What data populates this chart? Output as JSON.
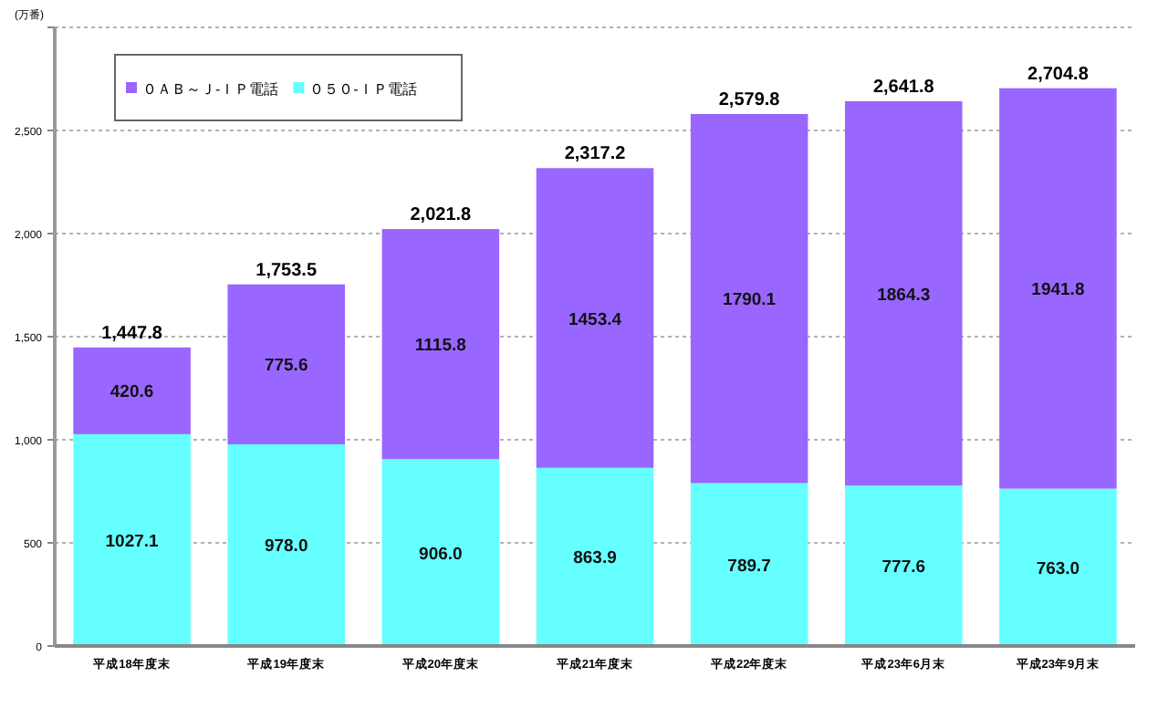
{
  "chart_data": {
    "type": "bar",
    "ylabel": "(万番)",
    "categories": [
      "平成18年度末",
      "平成19年度末",
      "平成20年度末",
      "平成21年度末",
      "平成22年度末",
      "平成23年6月末",
      "平成23年9月末"
    ],
    "series": [
      {
        "name": "０５０-ＩＰ電話",
        "color": "#66ffff",
        "values": [
          1027.1,
          978,
          906,
          863.9,
          789.7,
          777.6,
          763
        ],
        "value_labels": [
          "1027.1",
          "978.0",
          "906.0",
          "863.9",
          "789.7",
          "777.6",
          "763.0"
        ]
      },
      {
        "name": "０ＡＢ～Ｊ-ＩＰ電話",
        "color": "#9966ff",
        "values": [
          420.6,
          775.6,
          1115.8,
          1453.4,
          1790.1,
          1864.3,
          1941.8
        ],
        "value_labels": [
          "420.6",
          "775.6",
          "1115.8",
          "1453.4",
          "1790.1",
          "1864.3",
          "1941.8"
        ]
      }
    ],
    "stacked": true,
    "totals": [
      "1,447.8",
      "1,753.5",
      "2,021.8",
      "2,317.2",
      "2,579.8",
      "2,641.8",
      "2,704.8"
    ],
    "ylim": [
      0,
      3000
    ],
    "yticks": [
      0,
      500,
      {
        "value": 1000,
        "label": "1,000"
      },
      {
        "value": 1500,
        "label": "1,500"
      },
      {
        "value": 2000,
        "label": "2,000"
      },
      {
        "value": 2500,
        "label": "2,500"
      },
      {
        "value": 3000,
        "label": null
      }
    ],
    "grid": "y",
    "legend": "top left"
  }
}
